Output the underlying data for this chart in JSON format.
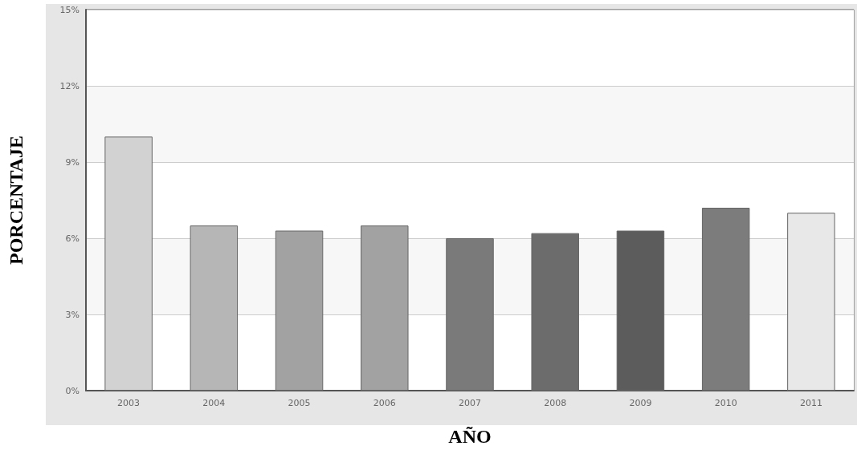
{
  "chart_data": {
    "type": "bar",
    "xlabel": "AÑO",
    "ylabel": "PORCENTAJE",
    "categories": [
      "2003",
      "2004",
      "2005",
      "2006",
      "2007",
      "2008",
      "2009",
      "2010",
      "2011"
    ],
    "values": [
      10.0,
      6.5,
      6.3,
      6.5,
      6.0,
      6.2,
      6.3,
      7.2,
      7.0
    ],
    "colors": [
      "#d2d2d2",
      "#b6b6b6",
      "#a2a2a2",
      "#a2a2a2",
      "#7a7a7a",
      "#6c6c6c",
      "#5c5c5c",
      "#7c7c7c",
      "#e8e8e8"
    ],
    "ylim": [
      0,
      15
    ],
    "yticks": [
      {
        "value": 0,
        "label": "0%"
      },
      {
        "value": 3,
        "label": "3%"
      },
      {
        "value": 6,
        "label": "6%"
      },
      {
        "value": 9,
        "label": "9%"
      },
      {
        "value": 12,
        "label": "12%"
      },
      {
        "value": 15,
        "label": "15%"
      }
    ],
    "grid": "y"
  }
}
